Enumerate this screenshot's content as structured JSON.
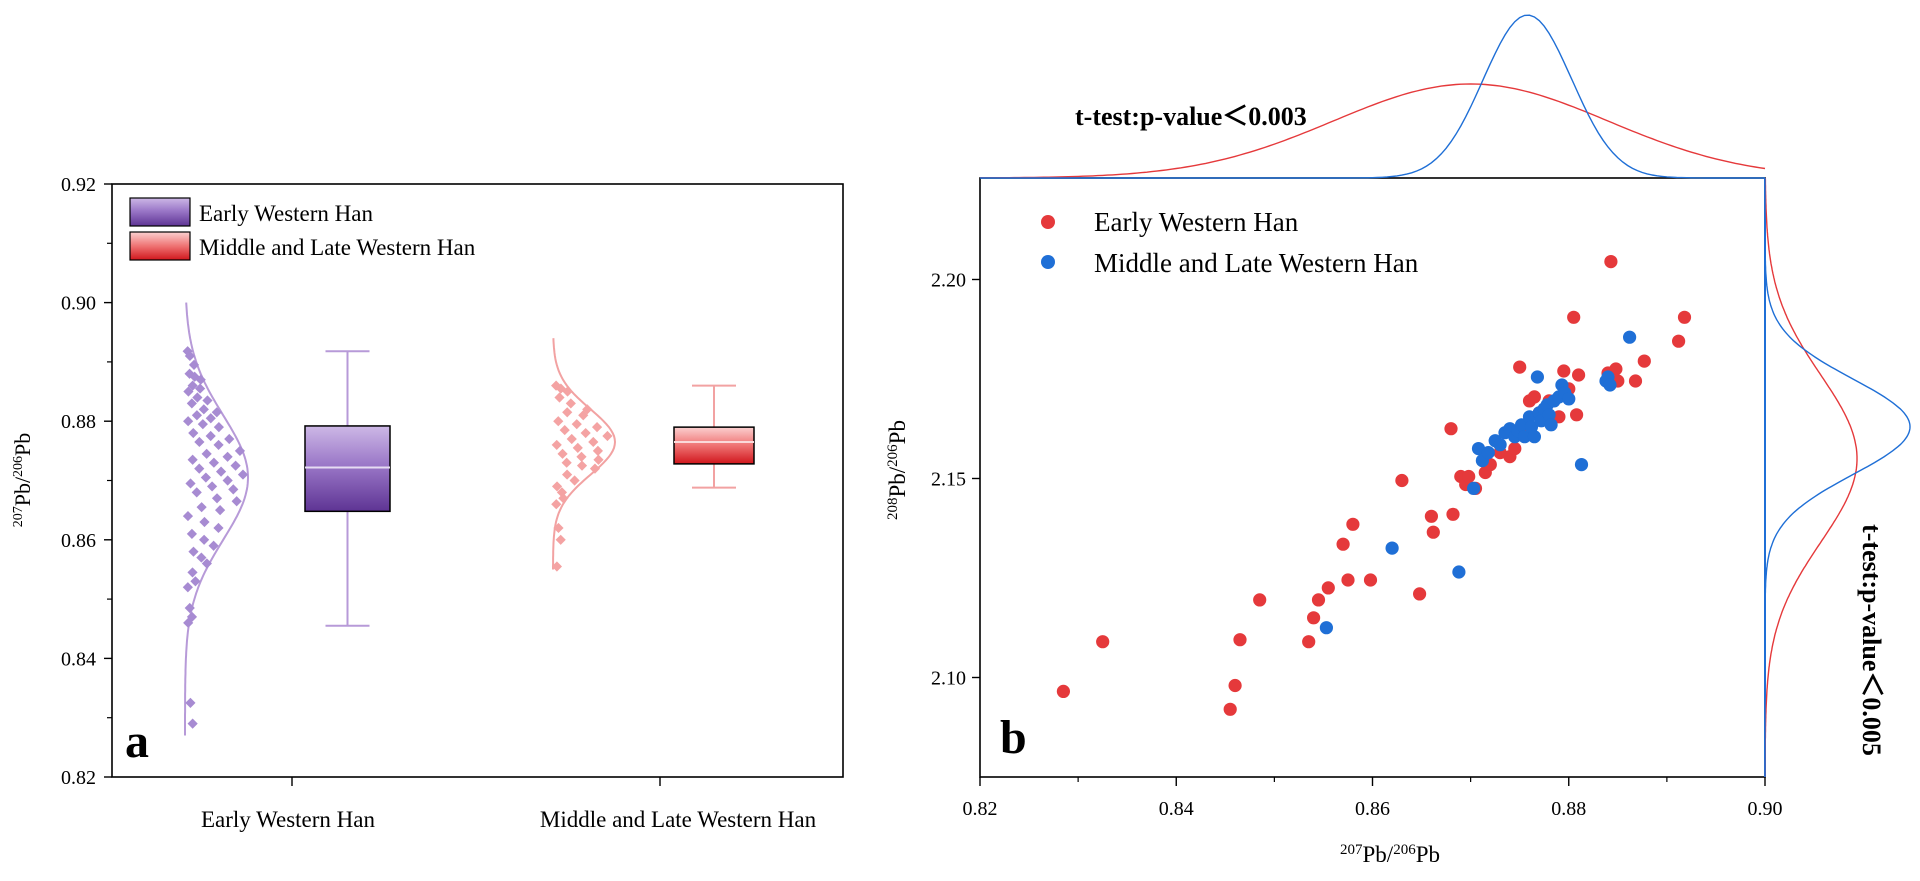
{
  "colors": {
    "early": "#e5393b",
    "early_box_light": "#f9c9c9",
    "early_box_dark": "#d9262a",
    "purple_light": "#c8b0e0",
    "purple_dark": "#6a3f9c",
    "purple_points": "#a78bd2",
    "pink_points": "#f4a3a3",
    "middle_late": "#1f6fd6",
    "axis": "#000000"
  },
  "chart_data": [
    {
      "panel": "a",
      "type": "box",
      "ylabel": "207Pb/206Pb",
      "ylim": [
        0.82,
        0.92
      ],
      "yticks": [
        "0.82",
        "0.84",
        "0.86",
        "0.88",
        "0.90",
        "0.92"
      ],
      "categories": [
        "Early Western Han",
        "Middle and Late Western Han"
      ],
      "legend": [
        "Early Western Han",
        "Middle and Late Western Han"
      ],
      "legend_position": "top-left",
      "series": [
        {
          "name": "Early Western Han",
          "box": {
            "min": 0.8455,
            "q1": 0.8648,
            "median": 0.8722,
            "q3": 0.8792,
            "max": 0.8918
          },
          "density": {
            "mean": 0.8705,
            "sd": 0.0105,
            "range": [
              0.827,
              0.9
            ]
          },
          "points": [
            0.8918,
            0.891,
            0.8895,
            0.888,
            0.8875,
            0.887,
            0.886,
            0.8855,
            0.885,
            0.884,
            0.8835,
            0.883,
            0.882,
            0.8815,
            0.881,
            0.8805,
            0.88,
            0.8795,
            0.879,
            0.878,
            0.8775,
            0.877,
            0.8765,
            0.876,
            0.875,
            0.8745,
            0.874,
            0.8735,
            0.873,
            0.8725,
            0.872,
            0.8715,
            0.871,
            0.8705,
            0.87,
            0.8695,
            0.869,
            0.8685,
            0.868,
            0.867,
            0.8665,
            0.8655,
            0.865,
            0.864,
            0.863,
            0.862,
            0.861,
            0.86,
            0.859,
            0.858,
            0.857,
            0.856,
            0.8545,
            0.853,
            0.852,
            0.8485,
            0.847,
            0.846,
            0.8325,
            0.829
          ]
        },
        {
          "name": "Middle and Late Western Han",
          "box": {
            "min": 0.8688,
            "q1": 0.8728,
            "median": 0.8765,
            "q3": 0.879,
            "max": 0.886
          },
          "density": {
            "mean": 0.8765,
            "sd": 0.0055,
            "range": [
              0.855,
              0.894
            ]
          },
          "points": [
            0.886,
            0.8855,
            0.885,
            0.884,
            0.883,
            0.882,
            0.8815,
            0.881,
            0.88,
            0.8795,
            0.879,
            0.8785,
            0.878,
            0.8775,
            0.877,
            0.8765,
            0.876,
            0.8755,
            0.875,
            0.8745,
            0.874,
            0.8735,
            0.873,
            0.8725,
            0.872,
            0.871,
            0.87,
            0.869,
            0.868,
            0.867,
            0.866,
            0.862,
            0.86,
            0.8555
          ]
        }
      ]
    },
    {
      "panel": "b",
      "type": "scatter",
      "xlabel": "207Pb/206Pb",
      "ylabel": "208Pb/206Pb",
      "xlim": [
        0.82,
        0.9
      ],
      "ylim": [
        2.075,
        2.2255
      ],
      "xticks": [
        "0.82",
        "0.84",
        "0.86",
        "0.88",
        "0.90"
      ],
      "yticks": [
        "2.10",
        "2.15",
        "2.20"
      ],
      "legend_position": "top-left",
      "annotation_top": "t-test:p-value＜0.003",
      "annotation_right": "t-test:p-value＜0.005",
      "series": [
        {
          "name": "Early Western Han",
          "points": [
            [
              0.8285,
              2.0965
            ],
            [
              0.8325,
              2.109
            ],
            [
              0.8455,
              2.092
            ],
            [
              0.846,
              2.098
            ],
            [
              0.8465,
              2.1095
            ],
            [
              0.8485,
              2.1195
            ],
            [
              0.8535,
              2.109
            ],
            [
              0.854,
              2.115
            ],
            [
              0.8545,
              2.1195
            ],
            [
              0.8555,
              2.1225
            ],
            [
              0.857,
              2.1335
            ],
            [
              0.8575,
              2.1245
            ],
            [
              0.858,
              2.1385
            ],
            [
              0.8598,
              2.1245
            ],
            [
              0.863,
              2.1495
            ],
            [
              0.8648,
              2.121
            ],
            [
              0.866,
              2.1405
            ],
            [
              0.8662,
              2.1365
            ],
            [
              0.868,
              2.1625
            ],
            [
              0.8682,
              2.141
            ],
            [
              0.869,
              2.1505
            ],
            [
              0.8695,
              2.1485
            ],
            [
              0.8698,
              2.1505
            ],
            [
              0.8705,
              2.1475
            ],
            [
              0.8715,
              2.1515
            ],
            [
              0.872,
              2.1535
            ],
            [
              0.873,
              2.1565
            ],
            [
              0.874,
              2.1555
            ],
            [
              0.8745,
              2.1575
            ],
            [
              0.875,
              2.178
            ],
            [
              0.8755,
              2.1635
            ],
            [
              0.876,
              2.1695
            ],
            [
              0.8765,
              2.1705
            ],
            [
              0.877,
              2.1665
            ],
            [
              0.878,
              2.1695
            ],
            [
              0.879,
              2.1655
            ],
            [
              0.8795,
              2.177
            ],
            [
              0.88,
              2.1725
            ],
            [
              0.8805,
              2.1905
            ],
            [
              0.8808,
              2.166
            ],
            [
              0.881,
              2.176
            ],
            [
              0.884,
              2.1765
            ],
            [
              0.8843,
              2.2045
            ],
            [
              0.8848,
              2.1775
            ],
            [
              0.885,
              2.1745
            ],
            [
              0.8868,
              2.1745
            ],
            [
              0.8877,
              2.1795
            ],
            [
              0.8912,
              2.1845
            ],
            [
              0.8918,
              2.1905
            ]
          ]
        },
        {
          "name": "Middle and Late Western Han",
          "points": [
            [
              0.8553,
              2.1125
            ],
            [
              0.862,
              2.1325
            ],
            [
              0.8688,
              2.1265
            ],
            [
              0.8703,
              2.1475
            ],
            [
              0.8708,
              2.1575
            ],
            [
              0.8712,
              2.1545
            ],
            [
              0.8718,
              2.1565
            ],
            [
              0.8725,
              2.1595
            ],
            [
              0.873,
              2.1585
            ],
            [
              0.8735,
              2.1615
            ],
            [
              0.874,
              2.1625
            ],
            [
              0.8745,
              2.1605
            ],
            [
              0.8748,
              2.162
            ],
            [
              0.8752,
              2.1635
            ],
            [
              0.8755,
              2.1605
            ],
            [
              0.876,
              2.1655
            ],
            [
              0.8762,
              2.163
            ],
            [
              0.8765,
              2.1605
            ],
            [
              0.8768,
              2.1755
            ],
            [
              0.877,
              2.1665
            ],
            [
              0.8772,
              2.1645
            ],
            [
              0.8775,
              2.1675
            ],
            [
              0.8778,
              2.1685
            ],
            [
              0.878,
              2.166
            ],
            [
              0.8782,
              2.1635
            ],
            [
              0.8785,
              2.1695
            ],
            [
              0.879,
              2.1705
            ],
            [
              0.8793,
              2.1735
            ],
            [
              0.8796,
              2.1715
            ],
            [
              0.88,
              2.17
            ],
            [
              0.8813,
              2.1535
            ],
            [
              0.8838,
              2.1745
            ],
            [
              0.884,
              2.1755
            ],
            [
              0.8842,
              2.1735
            ],
            [
              0.8862,
              2.1855
            ]
          ]
        }
      ],
      "marginal_top": [
        {
          "name": "Early Western Han",
          "mean": 0.87,
          "sd": 0.014
        },
        {
          "name": "Middle and Late Western Han",
          "mean": 0.8758,
          "sd": 0.0045
        }
      ],
      "marginal_right": [
        {
          "name": "Early Western Han",
          "mean": 2.155,
          "sd": 0.021
        },
        {
          "name": "Middle and Late Western Han",
          "mean": 2.163,
          "sd": 0.012
        }
      ]
    }
  ],
  "panel_labels": {
    "a": "a",
    "b": "b"
  }
}
